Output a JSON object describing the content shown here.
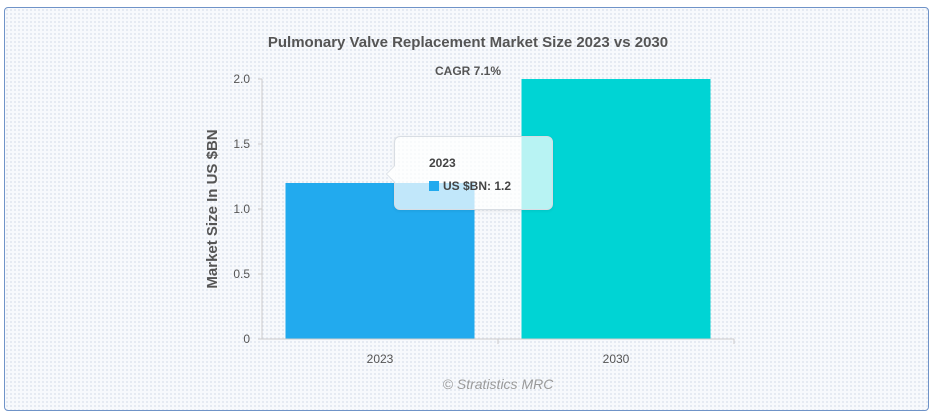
{
  "chart_data": {
    "type": "bar",
    "title": "Pulmonary Valve Replacement Market Size 2023 vs 2030",
    "subtitle": "CAGR 7.1%",
    "categories": [
      "2023",
      "2030"
    ],
    "values": [
      1.2,
      2.0
    ],
    "bar_colors": [
      "#22aaee",
      "#00d4d4"
    ],
    "ylabel": "Market Size In US $BN",
    "ylim": [
      0,
      2.0
    ],
    "yticks": [
      0,
      0.5,
      1.0,
      1.5,
      2.0
    ],
    "ytick_labels": [
      "0",
      "0.5",
      "1.0",
      "1.5",
      "2.0"
    ],
    "grid": false,
    "credit": "© Stratistics MRC",
    "tooltip": {
      "title": "2023",
      "series_label": "US $BN",
      "value_text": "1.2",
      "color": "#22aaee"
    }
  }
}
